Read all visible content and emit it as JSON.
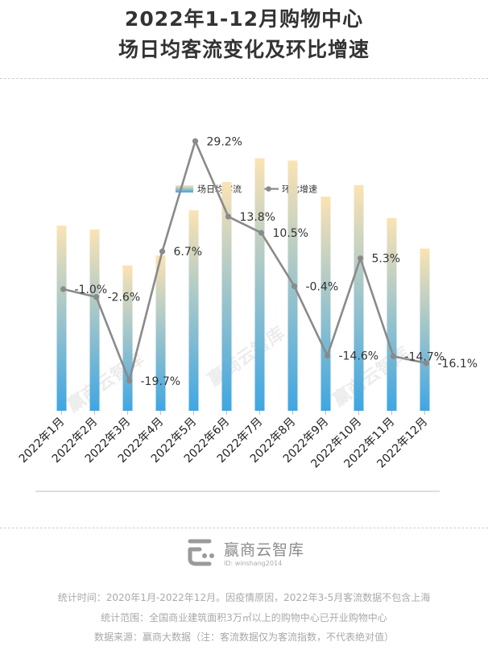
{
  "title_line1": "2022年1-12月购物中心",
  "title_line2": "场日均客流变化及环比增速",
  "chart_data": {
    "type": "bar",
    "categories": [
      "2022年1月",
      "2022年2月",
      "2022年3月",
      "2022年4月",
      "2022年5月",
      "2022年6月",
      "2022年7月",
      "2022年8月",
      "2022年9月",
      "2022年10月",
      "2022年11月",
      "2022年12月"
    ],
    "series": [
      {
        "name": "场日均客流",
        "type": "bar",
        "axis": "left",
        "values": [
          242,
          237,
          190,
          203,
          262,
          299,
          330,
          327,
          280,
          295,
          252,
          212
        ]
      },
      {
        "name": "环比增速",
        "type": "line",
        "axis": "right",
        "unit": "%",
        "values": [
          -1.0,
          -2.6,
          -19.7,
          6.7,
          29.2,
          13.8,
          10.5,
          -0.4,
          -14.6,
          5.3,
          -14.7,
          -16.1
        ],
        "labels": [
          "-1.0%",
          "-2.6%",
          "-19.7%",
          "6.7%",
          "29.2%",
          "13.8%",
          "10.5%",
          "-0.4%",
          "-14.6%",
          "5.3%",
          "-14.7%",
          "-16.1%"
        ]
      }
    ],
    "bar_ylim": [
      0,
      400
    ],
    "line_ylim": [
      -25,
      35
    ],
    "legend_position": "top-center",
    "grid": false,
    "bar_colors": {
      "top": "#fbe3b4",
      "bottom": "#3fa6e2"
    },
    "line_color": "#8a8a8a"
  },
  "watermark": "赢商云智库",
  "logo": {
    "name": "赢商云智库",
    "id": "ID: winshang2014"
  },
  "footnotes": [
    "统计时间：2020年1月-2022年12月。因疫情原因，2022年3-5月客流数据不包含上海",
    "统计范围：全国商业建筑面积3万㎡以上的购物中心已开业购物中心",
    "数据来源：赢商大数据（注：客流数据仅为客流指数，不代表绝对值）"
  ]
}
